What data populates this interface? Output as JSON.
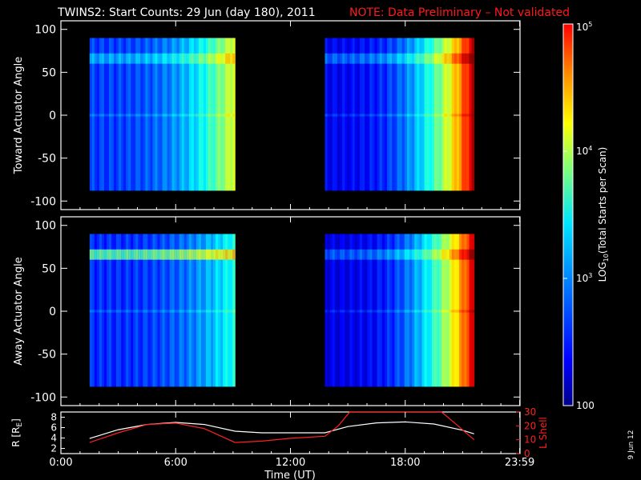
{
  "header": {
    "title": "TWINS2: Start Counts: 29 Jun (day 180), 2011",
    "note": "NOTE: Data Preliminary – Not validated"
  },
  "colors": {
    "background": "#000000",
    "axes": "#ffffff",
    "note": "#ff1a1a",
    "lshell": "#ff2020",
    "radius": "#ffffff"
  },
  "colorbar": {
    "label_prefix": "LOG",
    "label_sub": "10",
    "label_suffix": "(Total Starts per Scan)",
    "ticks": [
      "100",
      "10",
      "10",
      "10"
    ],
    "tick_sups": [
      "",
      "3",
      "4",
      "5"
    ],
    "colormap": "jet",
    "scale": "log",
    "range": [
      100,
      100000
    ]
  },
  "panels": {
    "top": {
      "ylabel": "Toward Actuator Angle"
    },
    "middle": {
      "ylabel": "Away Actuator Angle"
    },
    "bottom": {
      "ylabel_left": "R [R",
      "ylabel_left_sub": "E",
      "ylabel_left_end": "]",
      "ylabel_right": "L Shell"
    }
  },
  "x_axis": {
    "label": "Time (UT)",
    "ticks": [
      "0:00",
      "6:00",
      "12:00",
      "18:00",
      "23:59"
    ]
  },
  "side_date": "9 Jun 12",
  "chart_data": [
    {
      "type": "heatmap",
      "title": "TWINS2: Start Counts: 29 Jun (day 180), 2011",
      "xlabel": "Time (UT)",
      "ylabel": "Toward Actuator Angle",
      "xlim": [
        0,
        24
      ],
      "ylim": [
        -110,
        110
      ],
      "yticks": [
        "100",
        "50",
        "0",
        "-50",
        "-100"
      ],
      "y_extent": [
        -88,
        90
      ],
      "segments": [
        {
          "start_h": 1.5,
          "end_h": 9.1,
          "level_start": 2.55,
          "level_end": 3.8
        },
        {
          "start_h": 13.8,
          "end_h": 21.6,
          "level_start": 2.35,
          "level_end": 4.8
        }
      ]
    },
    {
      "type": "heatmap",
      "xlabel": "Time (UT)",
      "ylabel": "Away Actuator Angle",
      "xlim": [
        0,
        24
      ],
      "ylim": [
        -110,
        110
      ],
      "yticks": [
        "100",
        "50",
        "0",
        "-50",
        "-100"
      ],
      "y_extent": [
        -88,
        90
      ],
      "segments": [
        {
          "start_h": 1.5,
          "end_h": 9.1,
          "level_start": 2.5,
          "level_end": 3.2
        },
        {
          "start_h": 13.8,
          "end_h": 21.6,
          "level_start": 2.3,
          "level_end": 4.7
        }
      ]
    },
    {
      "type": "line",
      "xlabel": "Time (UT)",
      "xlim": [
        0,
        24
      ],
      "y_left": {
        "label": "R [RE]",
        "ticks": [
          "8",
          "6",
          "4",
          "2"
        ],
        "lim": [
          1,
          9
        ]
      },
      "y_right": {
        "label": "L Shell",
        "ticks": [
          "30",
          "20",
          "10",
          "0"
        ],
        "lim": [
          0,
          30
        ]
      },
      "series": [
        {
          "axis": "left",
          "x": [
            1.5,
            3,
            4.5,
            6,
            7.5,
            9.1,
            10.5,
            12,
            13.8,
            15,
            16.5,
            18,
            19.5,
            21,
            21.6
          ],
          "y": [
            3.9,
            5.6,
            6.6,
            7.0,
            6.6,
            5.3,
            5.0,
            5.0,
            5.0,
            6.2,
            6.9,
            7.1,
            6.7,
            5.5,
            4.8
          ]
        },
        {
          "axis": "right",
          "x": [
            1.5,
            3,
            4.5,
            6,
            7.5,
            9.1,
            10.5,
            12,
            13.8,
            14.5,
            15.1,
            19.9,
            20.5,
            21.6
          ],
          "y": [
            8,
            15,
            21,
            22,
            18,
            8,
            9,
            11,
            12.5,
            20,
            30,
            30,
            23,
            10
          ]
        }
      ]
    }
  ]
}
